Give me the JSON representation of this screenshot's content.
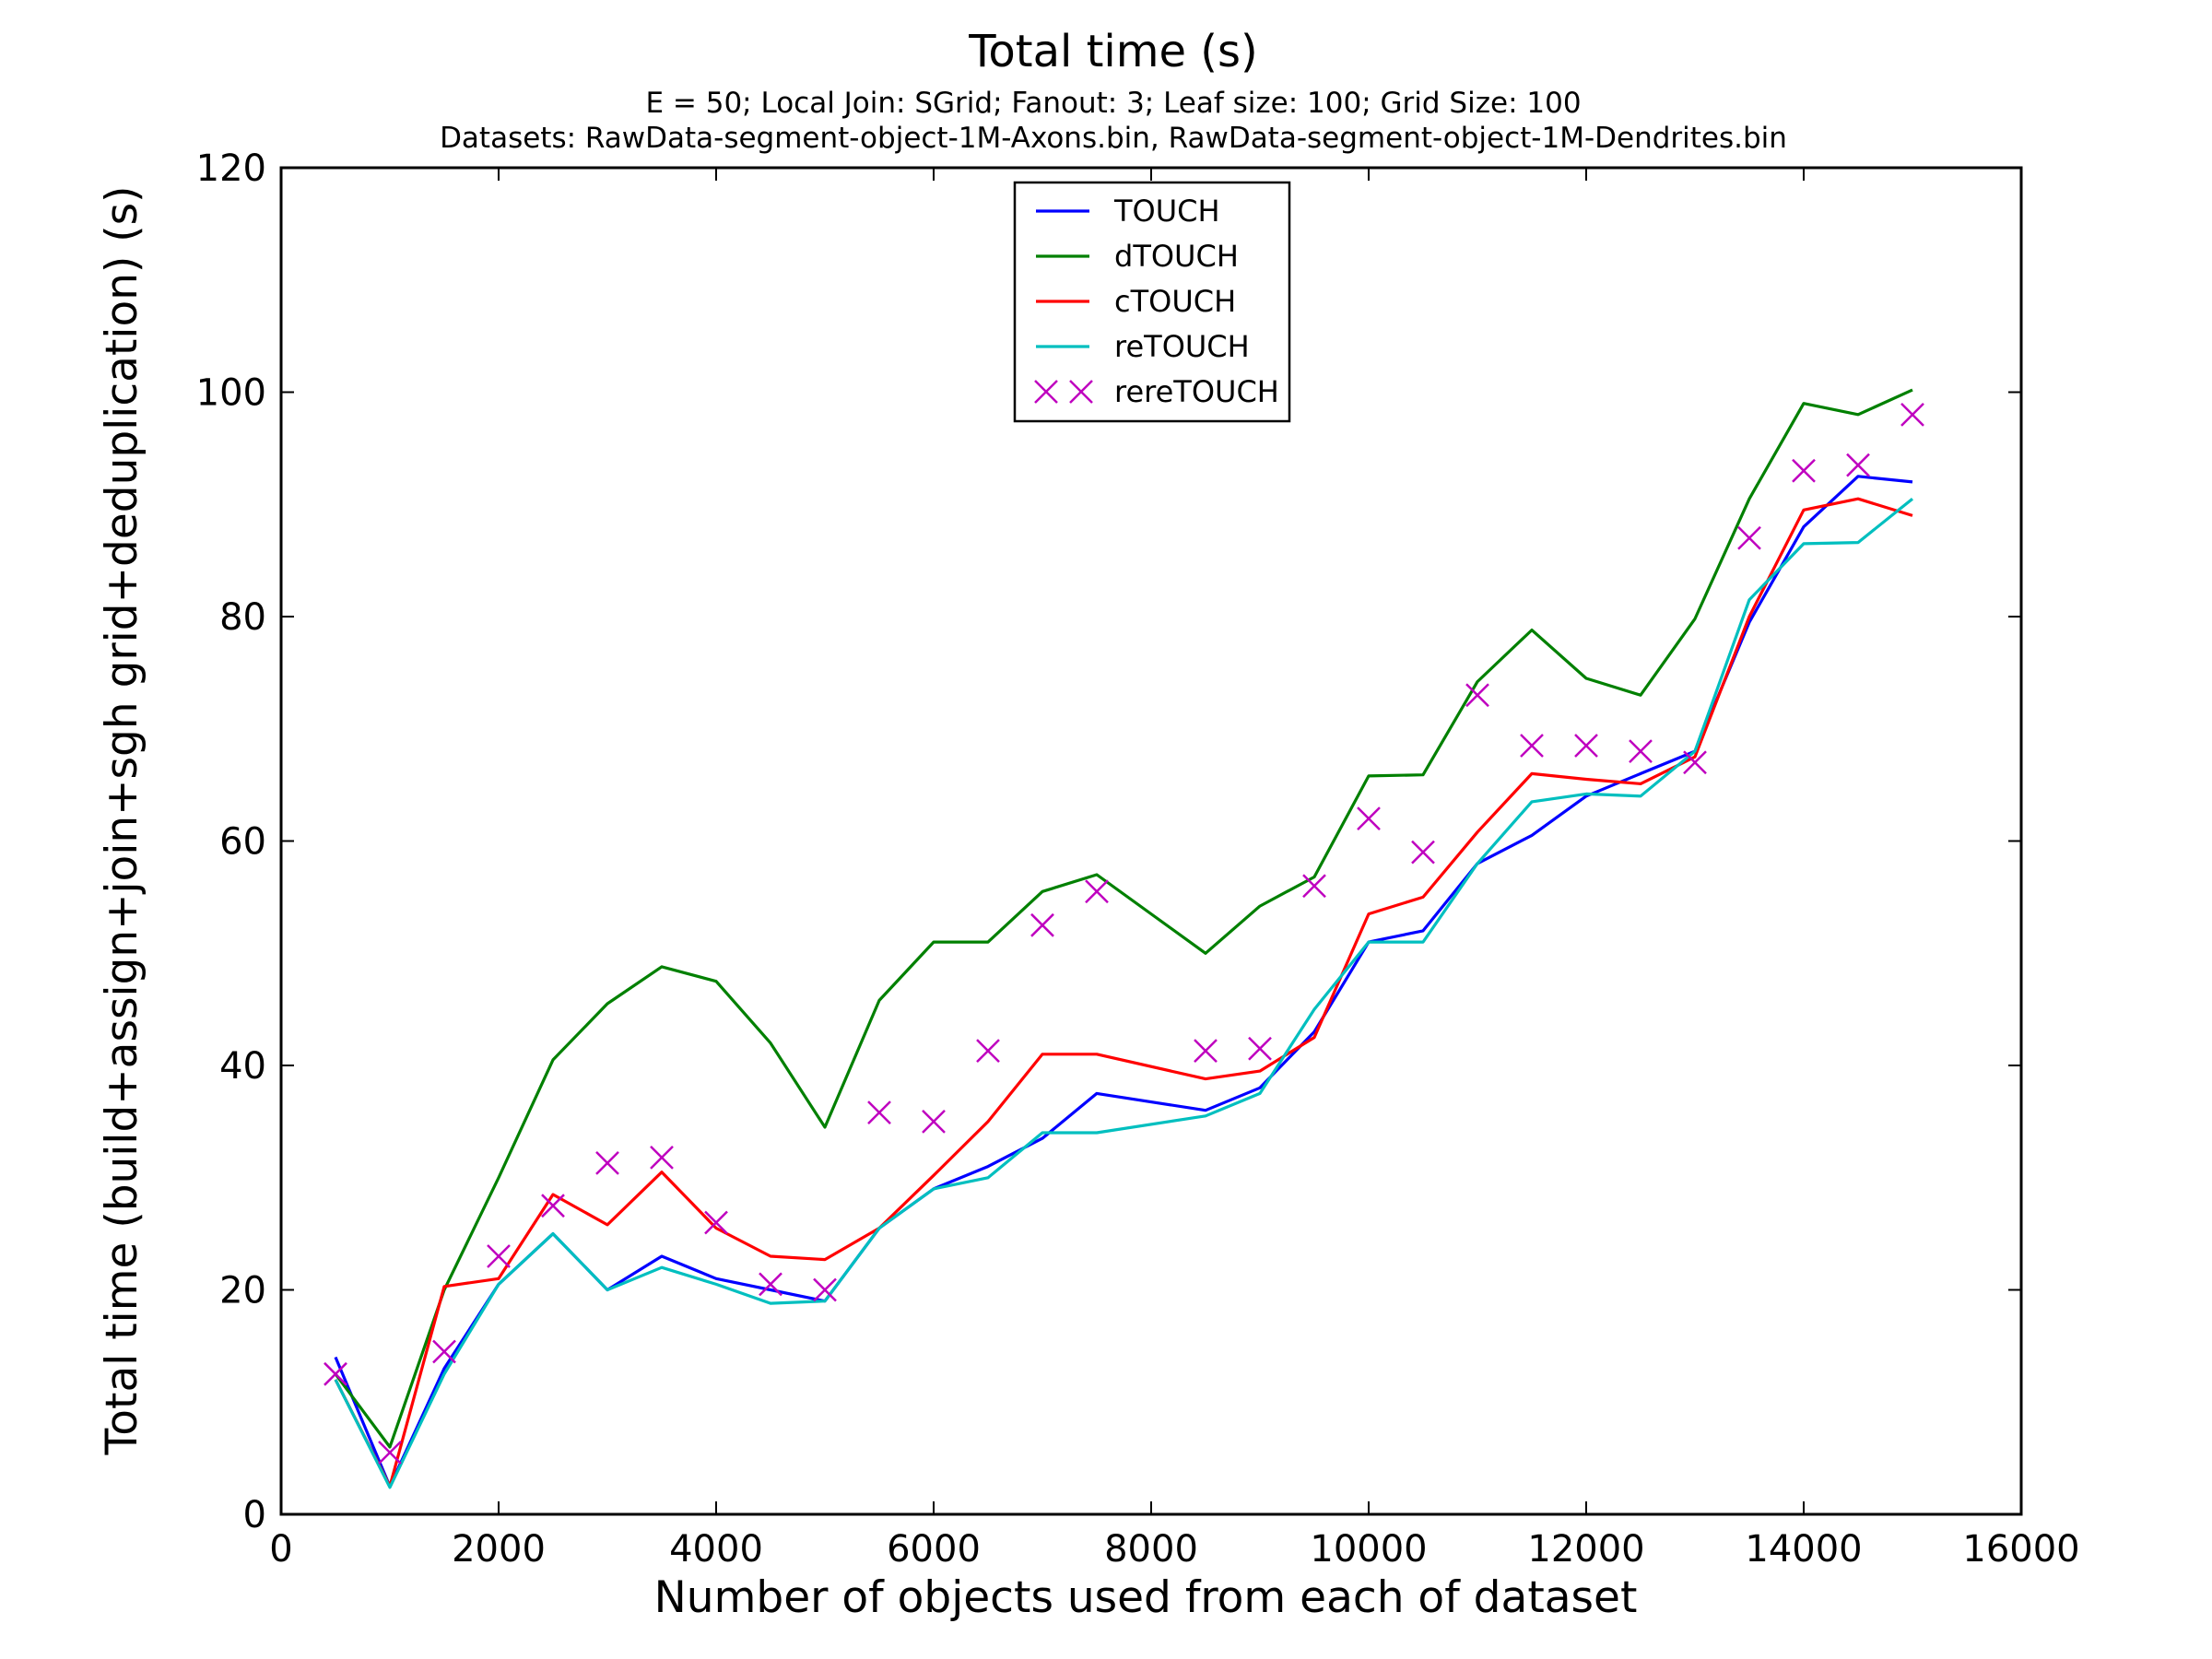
{
  "chart_data": {
    "type": "line",
    "title": "Total time (s)",
    "subtitle_lines": [
      "E = 50; Local Join: SGrid; Fanout: 3; Leaf size: 100; Grid Size: 100",
      "Datasets: RawData-segment-object-1M-Axons.bin, RawData-segment-object-1M-Dendrites.bin"
    ],
    "xlabel": "Number of objects used from each of dataset",
    "ylabel": "Total time (build+assign+join+sgh grid+deduplication) (s)",
    "xlim": [
      0,
      16000
    ],
    "ylim": [
      0,
      120
    ],
    "xticks": [
      0,
      2000,
      4000,
      6000,
      8000,
      10000,
      12000,
      14000,
      16000
    ],
    "yticks": [
      0,
      20,
      40,
      60,
      80,
      100,
      120
    ],
    "grid": false,
    "legend_position": "top-center",
    "x": [
      500,
      1000,
      1500,
      2000,
      2500,
      3000,
      3500,
      4000,
      4500,
      5000,
      5500,
      6000,
      6500,
      7000,
      7500,
      8500,
      9000,
      9500,
      10000,
      10500,
      11000,
      11500,
      12000,
      12500,
      13000,
      13500,
      14000,
      14500,
      15000
    ],
    "series": [
      {
        "name": "TOUCH",
        "style": "line",
        "color": "#0000ff",
        "values": [
          14.0,
          2.5,
          13.0,
          20.5,
          25.0,
          20.0,
          23.0,
          21.0,
          20.0,
          19.0,
          25.5,
          29.0,
          31.0,
          33.5,
          37.5,
          36.0,
          38.0,
          43.0,
          51.0,
          52.0,
          58.0,
          60.5,
          64.0,
          66.0,
          68.0,
          79.5,
          88.0,
          92.5,
          92.0
        ]
      },
      {
        "name": "dTOUCH",
        "style": "line",
        "color": "#008000",
        "values": [
          12.5,
          6.0,
          20.0,
          30.0,
          40.5,
          45.5,
          48.8,
          47.5,
          42.0,
          34.5,
          45.8,
          51.0,
          51.0,
          55.5,
          57.0,
          50.0,
          54.2,
          56.8,
          65.8,
          65.9,
          74.2,
          78.8,
          74.5,
          73.0,
          79.8,
          90.5,
          99.0,
          98.0,
          100.2
        ]
      },
      {
        "name": "cTOUCH",
        "style": "line",
        "color": "#ff0000",
        "values": [
          12.0,
          2.5,
          20.3,
          21.0,
          28.5,
          25.8,
          30.5,
          25.5,
          23.0,
          22.7,
          25.5,
          30.2,
          35.0,
          41.0,
          41.0,
          38.8,
          39.5,
          42.5,
          53.5,
          55.0,
          60.8,
          66.0,
          65.5,
          65.1,
          67.5,
          80.0,
          89.5,
          90.5,
          89.0
        ]
      },
      {
        "name": "reTOUCH",
        "style": "line",
        "color": "#00bfbf",
        "values": [
          12.0,
          2.4,
          12.5,
          20.5,
          25.0,
          20.0,
          22.0,
          20.5,
          18.8,
          19.0,
          25.5,
          29.0,
          30.0,
          34.0,
          34.0,
          35.5,
          37.5,
          45.0,
          51.0,
          51.0,
          58.0,
          63.5,
          64.2,
          64.0,
          68.0,
          81.5,
          86.5,
          86.6,
          90.5
        ]
      },
      {
        "name": "rereTOUCH",
        "style": "marker-x",
        "color": "#bf00bf",
        "values": [
          12.5,
          5.5,
          14.5,
          23.0,
          27.5,
          31.3,
          31.8,
          26.0,
          20.5,
          20.0,
          35.8,
          35.0,
          41.3,
          52.5,
          55.5,
          41.3,
          41.5,
          56.0,
          62.0,
          59.0,
          73.0,
          68.5,
          68.5,
          68.0,
          67.0,
          87.0,
          93.0,
          93.5,
          98.0
        ]
      }
    ]
  }
}
